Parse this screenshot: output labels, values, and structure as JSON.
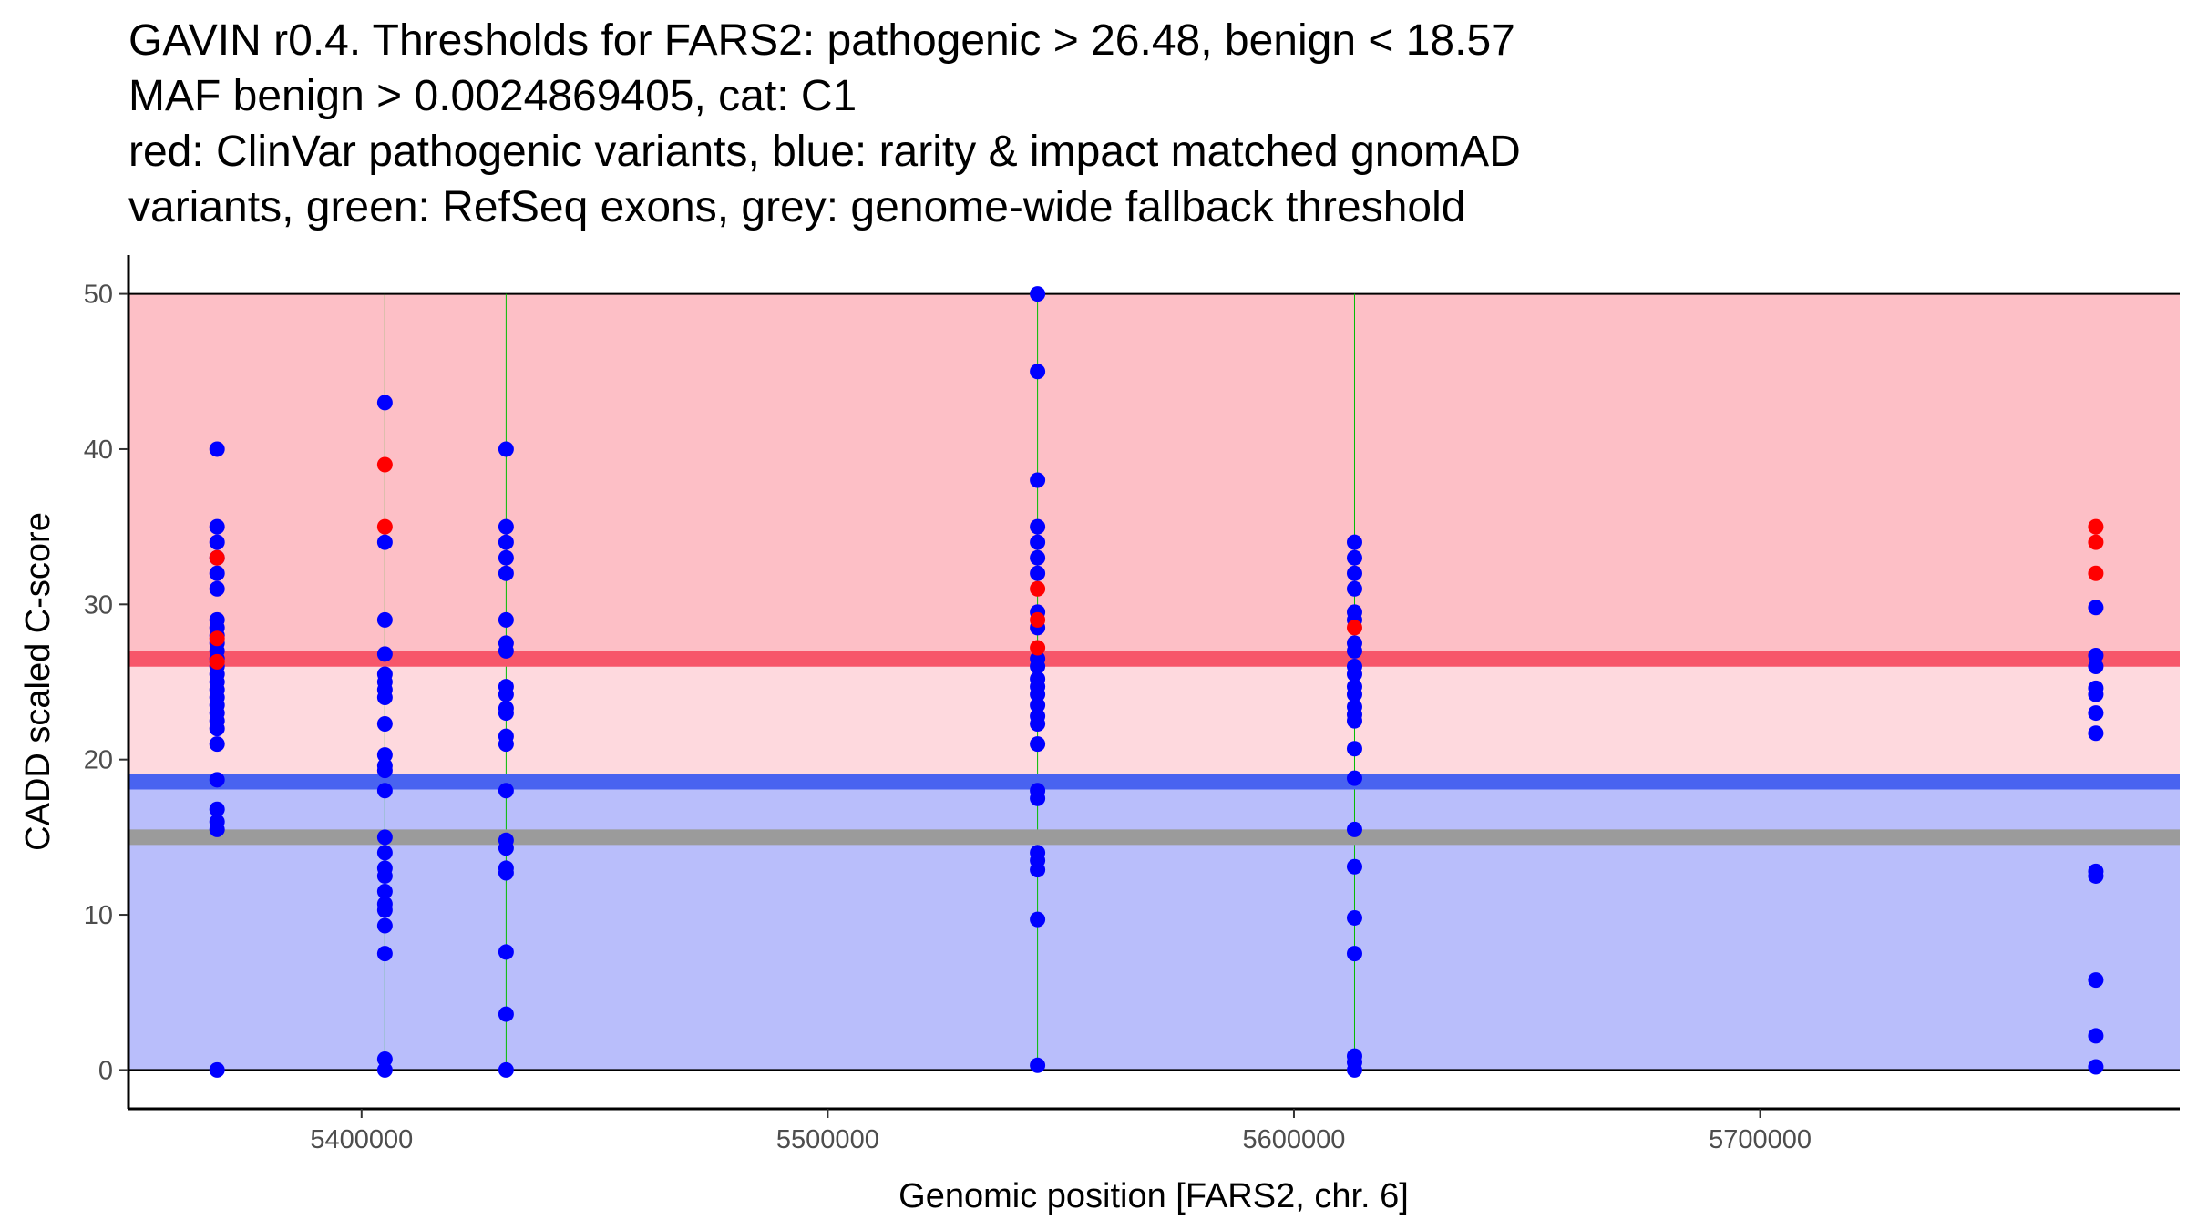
{
  "chart_data": {
    "type": "scatter",
    "title_lines": [
      "GAVIN r0.4. Thresholds for FARS2: pathogenic > 26.48, benign < 18.57",
      "MAF benign > 0.0024869405, cat: C1",
      "red: ClinVar pathogenic variants, blue: rarity & impact matched gnomAD",
      "variants, green: RefSeq exons, grey: genome-wide fallback threshold"
    ],
    "xlabel": "Genomic position [FARS2, chr. 6]",
    "ylabel": "CADD scaled C-score",
    "xlim": [
      5350000,
      5790000
    ],
    "ylim": [
      -2.5,
      52.5
    ],
    "x_ticks": [
      5400000,
      5500000,
      5600000,
      5700000
    ],
    "y_ticks": [
      0,
      10,
      20,
      30,
      40,
      50
    ],
    "thresholds": {
      "pathogenic": 26.48,
      "benign": 18.57,
      "fallback": 15.0,
      "region_top": 50,
      "region_bottom": 0
    },
    "colors": {
      "pathogenic_region": "#fdbfc6",
      "intermediate_region": "#fed9de",
      "benign_region": "#b9befb",
      "pathogenic_line": "#f7566a",
      "benign_line": "#4963f0",
      "fallback_line": "#9b9b9b",
      "exon_line": "#00bb00",
      "gnomad": "#0000ff",
      "clinvar": "#ff0000"
    },
    "exons": [
      5405000,
      5431000,
      5545000,
      5613000
    ],
    "series": [
      {
        "name": "rarity & impact matched gnomAD variants",
        "color": "#0000ff",
        "points": [
          [
            5369000,
            40
          ],
          [
            5369000,
            35
          ],
          [
            5369000,
            34
          ],
          [
            5369000,
            33
          ],
          [
            5369000,
            32
          ],
          [
            5369000,
            31
          ],
          [
            5369000,
            29
          ],
          [
            5369000,
            28.5
          ],
          [
            5369000,
            28
          ],
          [
            5369000,
            27.5
          ],
          [
            5369000,
            27
          ],
          [
            5369000,
            26.5
          ],
          [
            5369000,
            26
          ],
          [
            5369000,
            25.5
          ],
          [
            5369000,
            25
          ],
          [
            5369000,
            24.5
          ],
          [
            5369000,
            24
          ],
          [
            5369000,
            23.5
          ],
          [
            5369000,
            23
          ],
          [
            5369000,
            22.5
          ],
          [
            5369000,
            22
          ],
          [
            5369000,
            21
          ],
          [
            5369000,
            18.7
          ],
          [
            5369000,
            16.8
          ],
          [
            5369000,
            16
          ],
          [
            5369000,
            15.5
          ],
          [
            5369000,
            0
          ],
          [
            5405000,
            43
          ],
          [
            5405000,
            34
          ],
          [
            5405000,
            29
          ],
          [
            5405000,
            26.8
          ],
          [
            5405000,
            25.5
          ],
          [
            5405000,
            25
          ],
          [
            5405000,
            24.5
          ],
          [
            5405000,
            24
          ],
          [
            5405000,
            22.3
          ],
          [
            5405000,
            20.3
          ],
          [
            5405000,
            19.6
          ],
          [
            5405000,
            19.3
          ],
          [
            5405000,
            18
          ],
          [
            5405000,
            15
          ],
          [
            5405000,
            14
          ],
          [
            5405000,
            13
          ],
          [
            5405000,
            12.5
          ],
          [
            5405000,
            11.5
          ],
          [
            5405000,
            10.7
          ],
          [
            5405000,
            10.3
          ],
          [
            5405000,
            9.3
          ],
          [
            5405000,
            7.5
          ],
          [
            5405000,
            0.7
          ],
          [
            5405000,
            0
          ],
          [
            5431000,
            40
          ],
          [
            5431000,
            35
          ],
          [
            5431000,
            34
          ],
          [
            5431000,
            33
          ],
          [
            5431000,
            32
          ],
          [
            5431000,
            29
          ],
          [
            5431000,
            27.5
          ],
          [
            5431000,
            27
          ],
          [
            5431000,
            24.7
          ],
          [
            5431000,
            24.2
          ],
          [
            5431000,
            23.3
          ],
          [
            5431000,
            23
          ],
          [
            5431000,
            21.5
          ],
          [
            5431000,
            21
          ],
          [
            5431000,
            18
          ],
          [
            5431000,
            14.8
          ],
          [
            5431000,
            14.3
          ],
          [
            5431000,
            13
          ],
          [
            5431000,
            12.7
          ],
          [
            5431000,
            7.6
          ],
          [
            5431000,
            3.6
          ],
          [
            5431000,
            0
          ],
          [
            5545000,
            50
          ],
          [
            5545000,
            45
          ],
          [
            5545000,
            38
          ],
          [
            5545000,
            35
          ],
          [
            5545000,
            34
          ],
          [
            5545000,
            33
          ],
          [
            5545000,
            32
          ],
          [
            5545000,
            29.5
          ],
          [
            5545000,
            28.5
          ],
          [
            5545000,
            26.5
          ],
          [
            5545000,
            26
          ],
          [
            5545000,
            25.2
          ],
          [
            5545000,
            24.7
          ],
          [
            5545000,
            24.2
          ],
          [
            5545000,
            23.5
          ],
          [
            5545000,
            22.8
          ],
          [
            5545000,
            22.3
          ],
          [
            5545000,
            21
          ],
          [
            5545000,
            18
          ],
          [
            5545000,
            17.5
          ],
          [
            5545000,
            14
          ],
          [
            5545000,
            13.5
          ],
          [
            5545000,
            12.9
          ],
          [
            5545000,
            9.7
          ],
          [
            5545000,
            0.3
          ],
          [
            5613000,
            34
          ],
          [
            5613000,
            33
          ],
          [
            5613000,
            32
          ],
          [
            5613000,
            31
          ],
          [
            5613000,
            29.5
          ],
          [
            5613000,
            29
          ],
          [
            5613000,
            27.5
          ],
          [
            5613000,
            27
          ],
          [
            5613000,
            26
          ],
          [
            5613000,
            25.5
          ],
          [
            5613000,
            24.7
          ],
          [
            5613000,
            24.2
          ],
          [
            5613000,
            23.4
          ],
          [
            5613000,
            22.9
          ],
          [
            5613000,
            22.5
          ],
          [
            5613000,
            20.7
          ],
          [
            5613000,
            18.8
          ],
          [
            5613000,
            15.5
          ],
          [
            5613000,
            13.1
          ],
          [
            5613000,
            9.8
          ],
          [
            5613000,
            7.5
          ],
          [
            5613000,
            0.9
          ],
          [
            5613000,
            0.5
          ],
          [
            5613000,
            0
          ],
          [
            5772000,
            29.8
          ],
          [
            5772000,
            26.7
          ],
          [
            5772000,
            26
          ],
          [
            5772000,
            24.6
          ],
          [
            5772000,
            24.2
          ],
          [
            5772000,
            23
          ],
          [
            5772000,
            21.7
          ],
          [
            5772000,
            12.8
          ],
          [
            5772000,
            12.5
          ],
          [
            5772000,
            5.8
          ],
          [
            5772000,
            2.2
          ],
          [
            5772000,
            0.2
          ]
        ]
      },
      {
        "name": "ClinVar pathogenic variants",
        "color": "#ff0000",
        "points": [
          [
            5369000,
            33
          ],
          [
            5369000,
            27.8
          ],
          [
            5369000,
            26.3
          ],
          [
            5405000,
            39
          ],
          [
            5405000,
            35
          ],
          [
            5545000,
            31
          ],
          [
            5545000,
            29
          ],
          [
            5545000,
            27.2
          ],
          [
            5613000,
            28.5
          ],
          [
            5772000,
            35
          ],
          [
            5772000,
            34
          ],
          [
            5772000,
            32
          ]
        ]
      }
    ]
  }
}
